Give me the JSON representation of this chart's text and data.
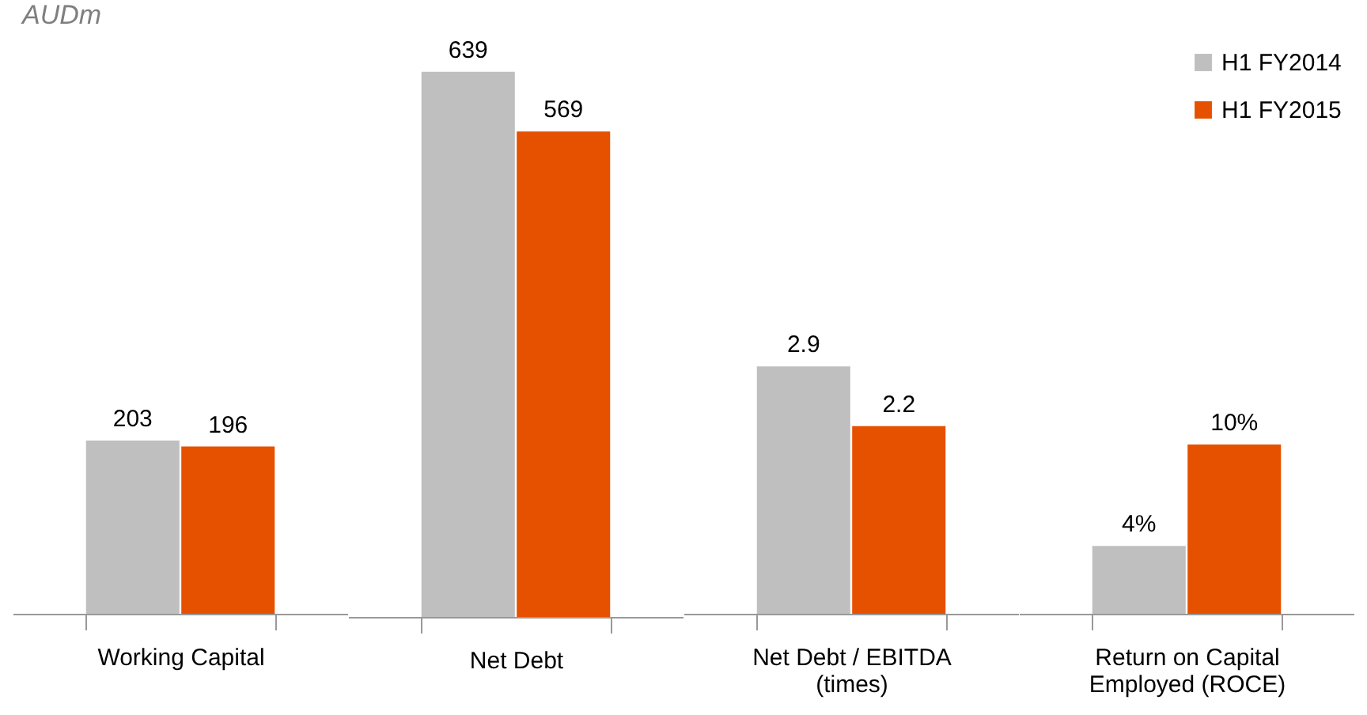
{
  "chart_data": [
    {
      "type": "bar",
      "title": "AUDm",
      "categories": [
        "Working Capital"
      ],
      "ylim": [
        0,
        675
      ],
      "tick_labels": "x",
      "legend": false,
      "grid": false,
      "series": [
        {
          "color": "#bfbfbf",
          "values": [
            203
          ],
          "value_labels": [
            "203"
          ]
        },
        {
          "color": "#e65100",
          "values": [
            196
          ],
          "value_labels": [
            "196"
          ]
        }
      ]
    },
    {
      "type": "bar",
      "categories": [
        "Net Debt"
      ],
      "ylim": [
        0,
        675
      ],
      "tick_labels": "x",
      "legend": false,
      "grid": false,
      "series": [
        {
          "color": "#bfbfbf",
          "values": [
            639
          ],
          "value_labels": [
            "639"
          ]
        },
        {
          "color": "#e65100",
          "values": [
            569
          ],
          "value_labels": [
            "569"
          ]
        }
      ]
    },
    {
      "type": "bar",
      "categories": [
        "Net Debt / EBITDA (times)"
      ],
      "ylim": [
        0,
        6.75
      ],
      "tick_labels": "x",
      "legend": false,
      "grid": false,
      "series": [
        {
          "color": "#bfbfbf",
          "values": [
            2.9
          ],
          "value_labels": [
            "2.9"
          ]
        },
        {
          "color": "#e65100",
          "values": [
            2.2
          ],
          "value_labels": [
            "2.2"
          ]
        }
      ]
    },
    {
      "type": "bar",
      "categories": [
        "Return on Capital Employed (ROCE)"
      ],
      "ylim": [
        0,
        34
      ],
      "tick_labels": "x",
      "legend": "top right",
      "grid": false,
      "series": [
        {
          "name": "H1 FY2014",
          "color": "#bfbfbf",
          "values": [
            4
          ],
          "value_labels": [
            "4%"
          ]
        },
        {
          "name": "H1 FY2015",
          "color": "#e65100",
          "values": [
            10
          ],
          "value_labels": [
            "10%"
          ]
        }
      ]
    }
  ]
}
